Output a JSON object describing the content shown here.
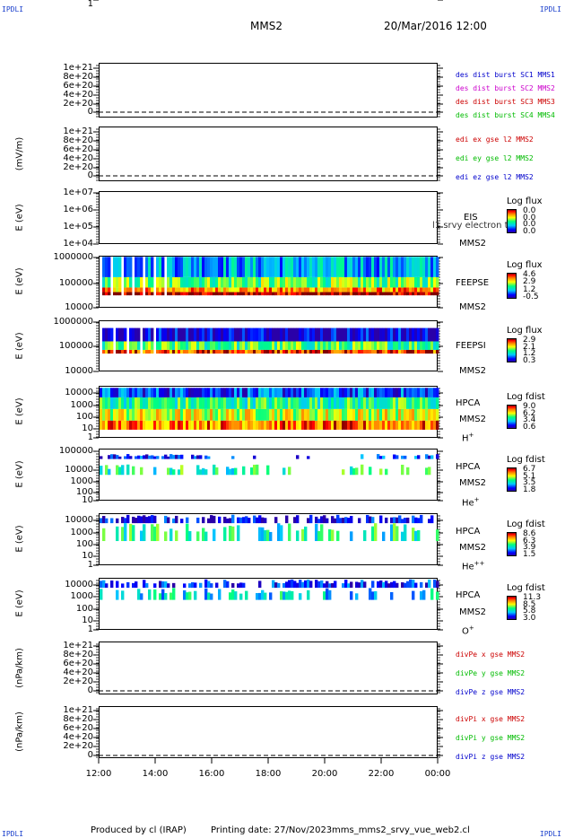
{
  "header": {
    "corner_left": "IPDLI",
    "corner_right": "IPDLI",
    "spacecraft": "MMS2",
    "date_time": "20/Mar/2016 12:00"
  },
  "footer": {
    "produced_by": "Produced by cl (IRAP)",
    "printing_date": "Printing date: 27/Nov/2023",
    "script_name": "mms_mms2_srvy_vue_web2.cl",
    "corner_left": "IPDLI",
    "corner_right": "IPDLI"
  },
  "x_axis": {
    "ticks": [
      "12:00",
      "14:00",
      "16:00",
      "18:00",
      "20:00",
      "22:00",
      "00:00"
    ]
  },
  "panels": [
    {
      "id": "p1",
      "ylabel": "",
      "ticks": [
        "1e+21",
        "8e+20",
        "6e+20",
        "4e+20",
        "2e+20",
        "0"
      ],
      "legend": [
        {
          "text": "des dist burst SC1 MMS1",
          "color": "#0000cc"
        },
        {
          "text": "des dist burst SC2 MMS2",
          "color": "#cc00cc"
        },
        {
          "text": "des dist burst SC3 MMS3",
          "color": "#cc0000"
        },
        {
          "text": "des dist burst SC4 MMS4",
          "color": "#00bb00"
        }
      ]
    },
    {
      "id": "p2",
      "ylabel": "(mV/m)",
      "ticks": [
        "1e+21",
        "8e+20",
        "6e+20",
        "4e+20",
        "2e+20",
        "0"
      ],
      "legend": [
        {
          "text": "edi ex gse l2 MMS2",
          "color": "#cc0000"
        },
        {
          "text": "edi ey gse l2 MMS2",
          "color": "#00bb00"
        },
        {
          "text": "edi ez gse l2 MMS2",
          "color": "#0000cc"
        }
      ]
    },
    {
      "id": "p3",
      "ylabel": "E (eV)",
      "ticks": [
        "1e+07",
        "1e+06",
        "1e+05",
        "1e+04"
      ],
      "instrument": "EIS",
      "instrument2": "MMS2",
      "overflow": "l1 srvy electron to",
      "cb_title": "Log flux",
      "cb_values": [
        "0.0",
        "0.0",
        "0.0",
        "0.0"
      ]
    },
    {
      "id": "p4",
      "ylabel": "E (eV)",
      "ticks": [
        "1000000",
        "100000",
        "10000"
      ],
      "instrument": "FEEPSE",
      "instrument2": "MMS2",
      "cb_title": "Log flux",
      "cb_values": [
        "4.6",
        "2.9",
        "1.2",
        "-0.5"
      ]
    },
    {
      "id": "p5",
      "ylabel": "E (eV)",
      "ticks": [
        "1000000",
        "100000",
        "10000"
      ],
      "instrument": "FEEPSI",
      "instrument2": "MMS2",
      "cb_title": "Log flux",
      "cb_values": [
        "2.9",
        "2.1",
        "1.2",
        "0.3"
      ]
    },
    {
      "id": "p6",
      "ylabel": "E (eV)",
      "ticks": [
        "10000",
        "1000",
        "100",
        "10",
        "1"
      ],
      "instrument": "HPCA",
      "instrument2": "MMS2",
      "species": "H",
      "species_sup": "+",
      "cb_title": "Log fdist",
      "cb_values": [
        "9.0",
        "6.2",
        "3.4",
        "0.6"
      ]
    },
    {
      "id": "p7",
      "ylabel": "E (eV)",
      "ticks": [
        "100000",
        "10000",
        "1000",
        "100",
        "10",
        "1"
      ],
      "instrument": "HPCA",
      "instrument2": "MMS2",
      "species": "He",
      "species_sup": "+",
      "cb_title": "Log fdist",
      "cb_values": [
        "6.7",
        "5.1",
        "3.5",
        "1.8"
      ]
    },
    {
      "id": "p8",
      "ylabel": "E (eV)",
      "ticks": [
        "10000",
        "1000",
        "100",
        "10",
        "1"
      ],
      "instrument": "HPCA",
      "instrument2": "MMS2",
      "species": "He",
      "species_sup": "++",
      "cb_title": "Log fdist",
      "cb_values": [
        "8.6",
        "6.3",
        "3.9",
        "1.5"
      ]
    },
    {
      "id": "p9",
      "ylabel": "E (eV)",
      "ticks": [
        "10000",
        "1000",
        "100",
        "10",
        "1"
      ],
      "instrument": "HPCA",
      "instrument2": "MMS2",
      "species": "O",
      "species_sup": "+",
      "cb_title": "Log fdist",
      "cb_values": [
        "11.3",
        "8.5",
        "5.8",
        "3.0"
      ]
    },
    {
      "id": "p10",
      "ylabel": "(nPa/km)",
      "ticks": [
        "1e+21",
        "8e+20",
        "6e+20",
        "4e+20",
        "2e+20",
        "0"
      ],
      "legend": [
        {
          "text": "divPe x gse MMS2",
          "color": "#cc0000"
        },
        {
          "text": "divPe y gse MMS2",
          "color": "#00bb00"
        },
        {
          "text": "divPe z gse MMS2",
          "color": "#0000cc"
        }
      ]
    },
    {
      "id": "p11",
      "ylabel": "(nPa/km)",
      "ticks": [
        "1e+21",
        "8e+20",
        "6e+20",
        "4e+20",
        "2e+20",
        "0"
      ],
      "legend": [
        {
          "text": "divPi x gse MMS2",
          "color": "#cc0000"
        },
        {
          "text": "divPi y gse MMS2",
          "color": "#00bb00"
        },
        {
          "text": "divPi z gse MMS2",
          "color": "#0000cc"
        }
      ]
    }
  ],
  "chart_data": [
    {
      "type": "line",
      "panel": "p1",
      "x_range": [
        "12:00",
        "00:00"
      ],
      "ylim": [
        0,
        1e+21
      ],
      "series": [],
      "zero_line": "dashed"
    },
    {
      "type": "line",
      "panel": "p2",
      "x_range": [
        "12:00",
        "00:00"
      ],
      "ylim": [
        0,
        1e+21
      ],
      "series": [],
      "zero_line": "dashed"
    },
    {
      "type": "heatmap",
      "panel": "p3",
      "y_scale": "log",
      "ylim": [
        10000.0,
        10000000.0
      ],
      "colorbar": [
        0.0,
        0.0
      ],
      "data": "empty"
    },
    {
      "type": "heatmap",
      "panel": "p4",
      "y_scale": "log",
      "ylim": [
        10000.0,
        1000000.0
      ],
      "colorbar": [
        -0.5,
        4.6
      ],
      "bands": [
        {
          "e_min": 30000,
          "e_max": 40000,
          "level": 4.6
        },
        {
          "e_min": 40000,
          "e_max": 60000,
          "level": 3.5
        },
        {
          "e_min": 60000,
          "e_max": 150000,
          "level": 2.2
        },
        {
          "e_min": 150000,
          "e_max": 900000,
          "level": 1.0
        }
      ]
    },
    {
      "type": "heatmap",
      "panel": "p5",
      "y_scale": "log",
      "ylim": [
        10000.0,
        1000000.0
      ],
      "colorbar": [
        0.3,
        2.9
      ],
      "bands": [
        {
          "e_min": 50000,
          "e_max": 70000,
          "level": 2.6
        },
        {
          "e_min": 70000,
          "e_max": 150000,
          "level": 1.6
        },
        {
          "e_min": 150000,
          "e_max": 500000,
          "level": 0.5
        }
      ]
    },
    {
      "type": "heatmap",
      "panel": "p6",
      "y_scale": "log",
      "ylim": [
        1,
        30000
      ],
      "colorbar": [
        0.6,
        9.0
      ],
      "bands": [
        {
          "e_min": 3000,
          "e_max": 20000,
          "level": 2.0
        },
        {
          "e_min": 300,
          "e_max": 3000,
          "level": 4.5
        },
        {
          "e_min": 30,
          "e_max": 300,
          "level": 6.0
        },
        {
          "e_min": 5,
          "e_max": 30,
          "level": 7.5
        }
      ]
    },
    {
      "type": "heatmap",
      "panel": "p7",
      "y_scale": "log",
      "ylim": [
        1,
        100000
      ],
      "colorbar": [
        1.8,
        6.7
      ],
      "bands": [
        {
          "e_min": 10000,
          "e_max": 30000,
          "level": 2.5
        },
        {
          "e_min": 300,
          "e_max": 3000,
          "level": 4.0
        }
      ]
    },
    {
      "type": "heatmap",
      "panel": "p8",
      "y_scale": "log",
      "ylim": [
        1,
        20000
      ],
      "colorbar": [
        1.5,
        8.6
      ],
      "bands": [
        {
          "e_min": 3000,
          "e_max": 15000,
          "level": 2.0
        },
        {
          "e_min": 100,
          "e_max": 3000,
          "level": 4.5
        }
      ]
    },
    {
      "type": "heatmap",
      "panel": "p9",
      "y_scale": "log",
      "ylim": [
        1,
        20000
      ],
      "colorbar": [
        3.0,
        11.3
      ],
      "bands": [
        {
          "e_min": 3000,
          "e_max": 15000,
          "level": 4.0
        },
        {
          "e_min": 300,
          "e_max": 3000,
          "level": 6.0
        }
      ]
    },
    {
      "type": "line",
      "panel": "p10",
      "x_range": [
        "12:00",
        "00:00"
      ],
      "ylim": [
        0,
        1e+21
      ],
      "series": [],
      "zero_line": "dashed"
    },
    {
      "type": "line",
      "panel": "p11",
      "x_range": [
        "12:00",
        "00:00"
      ],
      "ylim": [
        0,
        1e+21
      ],
      "series": [],
      "zero_line": "dashed"
    }
  ]
}
